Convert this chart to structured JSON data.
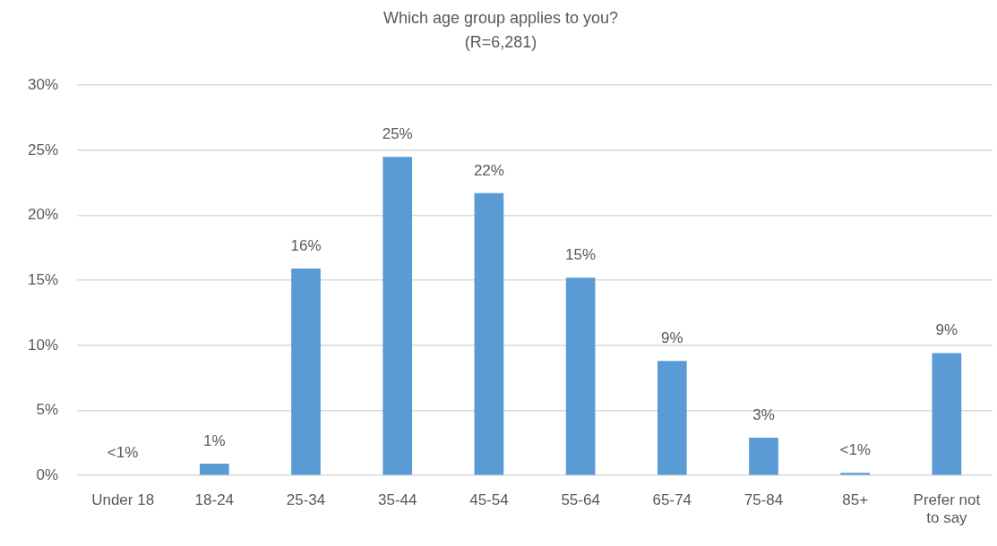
{
  "chart_data": {
    "type": "bar",
    "title": "Which age group applies to you?",
    "subtitle": "(R=6,281)",
    "categories": [
      "Under 18",
      "18-24",
      "25-34",
      "35-44",
      "45-54",
      "55-64",
      "65-74",
      "75-84",
      "85+",
      "Prefer not to say"
    ],
    "values": [
      0,
      0.9,
      15.9,
      24.5,
      21.7,
      15.2,
      8.8,
      2.9,
      0.2,
      9.4
    ],
    "color": "#5b9bd5",
    "value_labels": [
      "<1%",
      "1%",
      "16%",
      "25%",
      "22%",
      "15%",
      "9%",
      "3%",
      "<1%",
      "9%"
    ],
    "ylim": [
      0,
      30
    ],
    "yticks": [
      {
        "value": 0,
        "label": "0%"
      },
      {
        "value": 5,
        "label": "5%"
      },
      {
        "value": 10,
        "label": "10%"
      },
      {
        "value": 15,
        "label": "15%"
      },
      {
        "value": 20,
        "label": "20%"
      },
      {
        "value": 25,
        "label": "25%"
      },
      {
        "value": 30,
        "label": "30%"
      }
    ],
    "grid": "y"
  }
}
